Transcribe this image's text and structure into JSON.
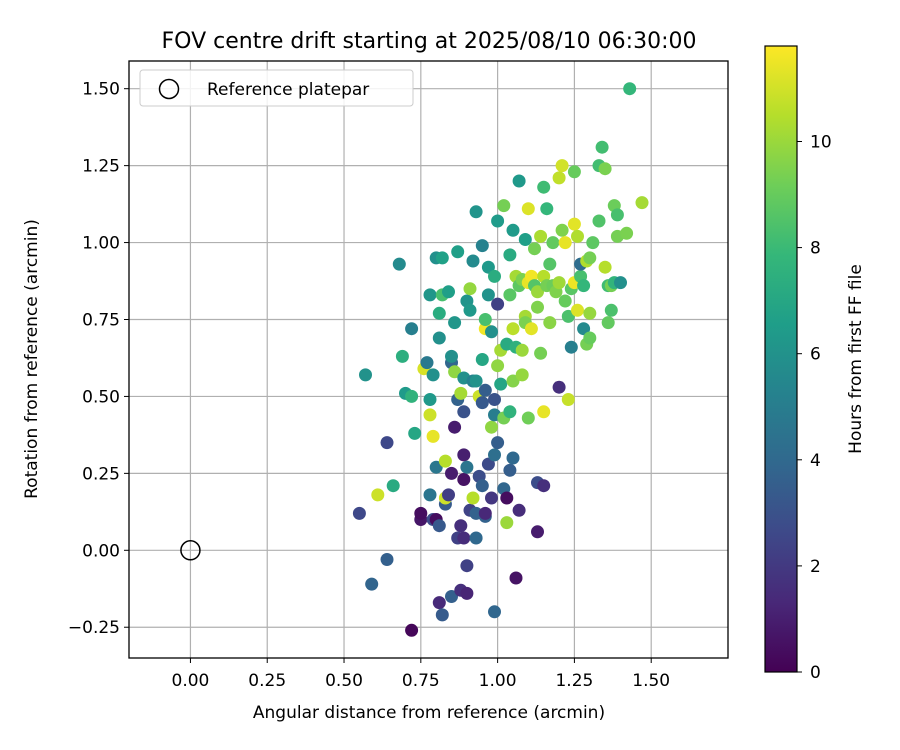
{
  "chart_data": {
    "type": "scatter",
    "title": "FOV centre drift starting at 2025/08/10 06:30:00",
    "xlabel": "Angular distance from reference (arcmin)",
    "ylabel": "Rotation from reference (arcmin)",
    "xlim": [
      -0.2,
      1.75
    ],
    "ylim": [
      -0.35,
      1.59
    ],
    "xticks": [
      "0.00",
      "0.25",
      "0.50",
      "0.75",
      "1.00",
      "1.25",
      "1.50"
    ],
    "yticks": [
      "−0.25",
      "0.00",
      "0.25",
      "0.50",
      "0.75",
      "1.00",
      "1.25",
      "1.50"
    ],
    "grid": true,
    "legend_position": "top-left",
    "reference": {
      "label": "Reference platepar",
      "x": 0.0,
      "y": 0.0
    },
    "colorbar": {
      "label": "Hours from first FF file",
      "colormap": "viridis",
      "range": [
        0,
        11.8
      ],
      "ticks": [
        "0",
        "2",
        "4",
        "6",
        "8",
        "10"
      ]
    },
    "colormap_stops": [
      "#440154",
      "#482878",
      "#3e4989",
      "#31688e",
      "#26828e",
      "#1f9e89",
      "#35b779",
      "#6ece58",
      "#b5de2b",
      "#fde725"
    ],
    "point_fields": [
      "x",
      "y",
      "hours"
    ],
    "points": [
      [
        0.72,
        -0.26,
        0.2
      ],
      [
        0.81,
        -0.17,
        1.4
      ],
      [
        0.82,
        -0.21,
        3.4
      ],
      [
        0.85,
        -0.15,
        3.6
      ],
      [
        0.88,
        -0.13,
        1.6
      ],
      [
        0.9,
        -0.14,
        1.2
      ],
      [
        0.99,
        -0.2,
        3.9
      ],
      [
        1.06,
        -0.09,
        0.6
      ],
      [
        0.59,
        -0.11,
        3.8
      ],
      [
        0.64,
        -0.03,
        3.6
      ],
      [
        0.9,
        -0.05,
        2.3
      ],
      [
        0.55,
        0.12,
        2.6
      ],
      [
        0.64,
        0.35,
        2.6
      ],
      [
        0.66,
        0.21,
        7.2
      ],
      [
        0.61,
        0.18,
        10.9
      ],
      [
        0.75,
        0.1,
        0.7
      ],
      [
        0.75,
        0.12,
        0.4
      ],
      [
        0.78,
        0.18,
        4.6
      ],
      [
        0.79,
        0.1,
        2.7
      ],
      [
        0.8,
        0.1,
        0.4
      ],
      [
        0.81,
        0.08,
        3.3
      ],
      [
        0.83,
        0.15,
        3.4
      ],
      [
        0.83,
        0.17,
        10.9
      ],
      [
        0.84,
        0.18,
        2.2
      ],
      [
        0.85,
        0.25,
        0.9
      ],
      [
        0.86,
        0.4,
        0.9
      ],
      [
        0.87,
        0.04,
        2.3
      ],
      [
        0.88,
        0.08,
        1.6
      ],
      [
        0.89,
        0.23,
        0.6
      ],
      [
        0.89,
        0.04,
        1.5
      ],
      [
        0.89,
        0.31,
        1.0
      ],
      [
        0.9,
        0.27,
        4.6
      ],
      [
        0.91,
        0.13,
        2.4
      ],
      [
        0.92,
        0.17,
        10.5
      ],
      [
        0.93,
        0.04,
        4.0
      ],
      [
        0.93,
        0.12,
        3.7
      ],
      [
        0.94,
        0.24,
        2.8
      ],
      [
        0.95,
        0.21,
        3.6
      ],
      [
        0.96,
        0.11,
        3.7
      ],
      [
        0.96,
        0.12,
        1.3
      ],
      [
        0.97,
        0.28,
        2.7
      ],
      [
        0.98,
        0.17,
        1.9
      ],
      [
        0.99,
        0.31,
        4.3
      ],
      [
        1.0,
        0.35,
        3.5
      ],
      [
        1.02,
        0.2,
        3.9
      ],
      [
        1.03,
        0.17,
        0.4
      ],
      [
        1.03,
        0.09,
        10.0
      ],
      [
        1.04,
        0.26,
        3.5
      ],
      [
        1.05,
        0.3,
        4.0
      ],
      [
        1.07,
        0.13,
        1.5
      ],
      [
        1.13,
        0.06,
        0.9
      ],
      [
        1.13,
        0.22,
        2.8
      ],
      [
        1.15,
        0.21,
        1.6
      ],
      [
        1.2,
        0.53,
        1.6
      ],
      [
        0.57,
        0.57,
        6.0
      ],
      [
        0.68,
        0.93,
        5.6
      ],
      [
        0.69,
        0.63,
        7.4
      ],
      [
        0.7,
        0.51,
        6.4
      ],
      [
        0.72,
        0.72,
        5.1
      ],
      [
        0.72,
        0.5,
        7.6
      ],
      [
        0.73,
        0.38,
        7.0
      ],
      [
        0.76,
        0.59,
        11.1
      ],
      [
        0.77,
        0.61,
        4.8
      ],
      [
        0.78,
        0.83,
        6.2
      ],
      [
        0.78,
        0.49,
        6.3
      ],
      [
        0.78,
        0.44,
        10.9
      ],
      [
        0.79,
        0.57,
        5.9
      ],
      [
        0.79,
        0.37,
        11.4
      ],
      [
        0.8,
        0.95,
        5.9
      ],
      [
        0.8,
        0.27,
        4.7
      ],
      [
        0.81,
        0.69,
        5.9
      ],
      [
        0.81,
        0.77,
        7.3
      ],
      [
        0.82,
        0.95,
        6.7
      ],
      [
        0.82,
        0.83,
        8.3
      ],
      [
        0.83,
        0.29,
        10.5
      ],
      [
        0.84,
        0.84,
        6.6
      ],
      [
        0.85,
        0.61,
        3.9
      ],
      [
        0.85,
        0.63,
        5.9
      ],
      [
        0.86,
        0.74,
        6.2
      ],
      [
        0.86,
        0.58,
        9.8
      ],
      [
        0.87,
        0.97,
        6.6
      ],
      [
        0.87,
        0.49,
        3.7
      ],
      [
        0.88,
        0.51,
        10.2
      ],
      [
        0.89,
        0.45,
        3.0
      ],
      [
        0.89,
        0.56,
        5.9
      ],
      [
        0.9,
        0.81,
        6.1
      ],
      [
        0.91,
        0.85,
        9.9
      ],
      [
        0.91,
        0.78,
        6.3
      ],
      [
        0.92,
        0.94,
        5.6
      ],
      [
        0.92,
        0.55,
        5.2
      ],
      [
        0.93,
        0.55,
        6.0
      ],
      [
        0.93,
        1.1,
        6.1
      ],
      [
        0.94,
        0.5,
        10.9
      ],
      [
        0.95,
        0.62,
        7.0
      ],
      [
        0.95,
        0.99,
        5.2
      ],
      [
        0.95,
        0.48,
        3.3
      ],
      [
        0.96,
        0.72,
        11.6
      ],
      [
        0.96,
        0.52,
        3.5
      ],
      [
        0.96,
        0.75,
        8.3
      ],
      [
        0.97,
        0.92,
        6.3
      ],
      [
        0.97,
        0.83,
        6.0
      ],
      [
        0.98,
        0.4,
        9.8
      ],
      [
        0.98,
        0.71,
        5.9
      ],
      [
        0.99,
        0.89,
        7.3
      ],
      [
        0.99,
        0.44,
        5.0
      ],
      [
        0.99,
        0.49,
        3.0
      ],
      [
        1.0,
        1.07,
        6.4
      ],
      [
        1.0,
        0.8,
        2.3
      ],
      [
        1.0,
        0.6,
        9.8
      ],
      [
        1.01,
        0.54,
        6.9
      ],
      [
        1.01,
        0.65,
        10.2
      ],
      [
        1.02,
        1.12,
        9.3
      ],
      [
        1.02,
        0.43,
        9.3
      ],
      [
        1.03,
        0.67,
        7.2
      ],
      [
        1.04,
        0.96,
        7.2
      ],
      [
        1.04,
        0.83,
        8.7
      ],
      [
        1.04,
        0.45,
        7.6
      ],
      [
        1.05,
        0.55,
        9.6
      ],
      [
        1.05,
        1.04,
        6.4
      ],
      [
        1.05,
        0.72,
        10.6
      ],
      [
        1.06,
        0.66,
        7.5
      ],
      [
        1.06,
        0.89,
        10.2
      ],
      [
        1.07,
        0.86,
        8.8
      ],
      [
        1.07,
        1.2,
        6.3
      ],
      [
        1.08,
        0.65,
        10.0
      ],
      [
        1.08,
        0.57,
        9.9
      ],
      [
        1.08,
        0.88,
        9.4
      ],
      [
        1.09,
        0.76,
        10.2
      ],
      [
        1.09,
        1.01,
        6.6
      ],
      [
        1.09,
        0.74,
        9.4
      ],
      [
        1.1,
        0.87,
        11.4
      ],
      [
        1.1,
        0.43,
        9.2
      ],
      [
        1.1,
        1.11,
        11.2
      ],
      [
        1.11,
        0.89,
        11.6
      ],
      [
        1.11,
        0.72,
        11.3
      ],
      [
        1.12,
        0.98,
        9.3
      ],
      [
        1.12,
        0.86,
        8.6
      ],
      [
        1.13,
        0.79,
        9.5
      ],
      [
        1.13,
        0.84,
        10.0
      ],
      [
        1.14,
        1.02,
        10.3
      ],
      [
        1.14,
        0.64,
        9.3
      ],
      [
        1.15,
        0.89,
        10.5
      ],
      [
        1.15,
        1.18,
        8.1
      ],
      [
        1.15,
        0.45,
        11.4
      ],
      [
        1.16,
        0.86,
        9.3
      ],
      [
        1.16,
        1.11,
        7.8
      ],
      [
        1.17,
        0.74,
        9.7
      ],
      [
        1.17,
        0.93,
        8.6
      ],
      [
        1.18,
        0.86,
        9.1
      ],
      [
        1.18,
        1.0,
        8.9
      ],
      [
        1.19,
        0.84,
        9.5
      ],
      [
        1.2,
        1.21,
        10.7
      ],
      [
        1.2,
        0.87,
        10.1
      ],
      [
        1.21,
        1.04,
        9.5
      ],
      [
        1.21,
        1.25,
        11.0
      ],
      [
        1.22,
        1.0,
        11.4
      ],
      [
        1.22,
        0.81,
        9.0
      ],
      [
        1.23,
        0.49,
        10.8
      ],
      [
        1.23,
        0.76,
        8.4
      ],
      [
        1.24,
        0.66,
        5.1
      ],
      [
        1.24,
        0.85,
        8.7
      ],
      [
        1.25,
        1.23,
        9.0
      ],
      [
        1.25,
        0.87,
        11.5
      ],
      [
        1.25,
        1.06,
        11.3
      ],
      [
        1.26,
        0.78,
        11.2
      ],
      [
        1.26,
        1.02,
        10.4
      ],
      [
        1.27,
        0.89,
        8.3
      ],
      [
        1.27,
        0.93,
        4.2
      ],
      [
        1.28,
        0.72,
        5.6
      ],
      [
        1.28,
        0.86,
        7.8
      ],
      [
        1.29,
        0.67,
        9.3
      ],
      [
        1.29,
        0.94,
        10.4
      ],
      [
        1.3,
        0.69,
        9.0
      ],
      [
        1.3,
        0.95,
        9.3
      ],
      [
        1.3,
        0.77,
        9.9
      ],
      [
        1.31,
        1.0,
        8.8
      ],
      [
        1.33,
        1.25,
        8.2
      ],
      [
        1.33,
        1.07,
        8.5
      ],
      [
        1.34,
        1.31,
        8.2
      ],
      [
        1.35,
        1.24,
        9.4
      ],
      [
        1.35,
        0.92,
        10.5
      ],
      [
        1.36,
        0.86,
        8.1
      ],
      [
        1.36,
        0.74,
        8.9
      ],
      [
        1.37,
        0.78,
        8.4
      ],
      [
        1.37,
        0.86,
        9.3
      ],
      [
        1.38,
        0.87,
        7.7
      ],
      [
        1.38,
        1.12,
        9.1
      ],
      [
        1.39,
        1.02,
        9.3
      ],
      [
        1.39,
        1.09,
        8.3
      ],
      [
        1.4,
        0.87,
        5.9
      ],
      [
        1.42,
        1.03,
        9.4
      ],
      [
        1.43,
        1.5,
        7.8
      ],
      [
        1.47,
        1.13,
        10.2
      ]
    ]
  }
}
